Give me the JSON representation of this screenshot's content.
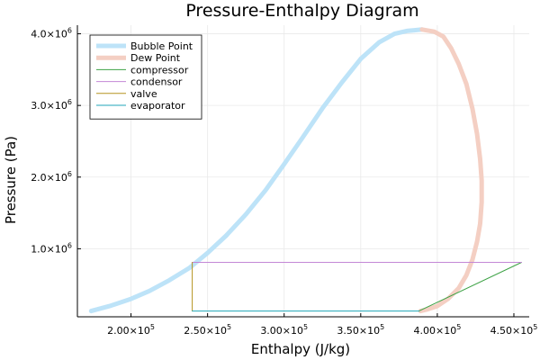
{
  "chart_data": {
    "type": "line",
    "title": "Pressure-Enthalpy Diagram",
    "xlabel": "Enthalpy (J/kg)",
    "ylabel": "Pressure (Pa)",
    "xlim": [
      165000,
      460000
    ],
    "ylim": [
      50000,
      4120000
    ],
    "grid": true,
    "legend_position": "top-left",
    "x_ticks": [
      {
        "value": 200000,
        "mantissa": "2.00×10",
        "exp": "5"
      },
      {
        "value": 250000,
        "mantissa": "2.50×10",
        "exp": "5"
      },
      {
        "value": 300000,
        "mantissa": "3.00×10",
        "exp": "5"
      },
      {
        "value": 350000,
        "mantissa": "3.50×10",
        "exp": "5"
      },
      {
        "value": 400000,
        "mantissa": "4.00×10",
        "exp": "5"
      },
      {
        "value": 450000,
        "mantissa": "4.50×10",
        "exp": "5"
      }
    ],
    "y_ticks": [
      {
        "value": 1000000,
        "mantissa": "1.0×10",
        "exp": "6"
      },
      {
        "value": 2000000,
        "mantissa": "2.0×10",
        "exp": "6"
      },
      {
        "value": 3000000,
        "mantissa": "3.0×10",
        "exp": "6"
      },
      {
        "value": 4000000,
        "mantissa": "4.0×10",
        "exp": "6"
      }
    ],
    "series": [
      {
        "name": "Bubble Point",
        "color": "#bde3f8",
        "width": 5,
        "x": [
          174000,
          186000,
          200000,
          212000,
          225000,
          238000,
          250000,
          262000,
          275000,
          288000,
          300000,
          312000,
          325000,
          338000,
          350000,
          362000,
          372000,
          380000,
          385000,
          390000
        ],
        "y": [
          130000,
          200000,
          300000,
          410000,
          560000,
          730000,
          940000,
          1180000,
          1480000,
          1820000,
          2180000,
          2550000,
          2960000,
          3330000,
          3650000,
          3880000,
          4000000,
          4040000,
          4050000,
          4060000
        ]
      },
      {
        "name": "Dew Point",
        "color": "#f4cfc3",
        "width": 5,
        "x": [
          390000,
          398000,
          404000,
          409000,
          414000,
          419000,
          423000,
          426000,
          428000,
          429000,
          429000,
          428000,
          426000,
          423000,
          419000,
          414000,
          407000,
          400000,
          393000,
          389000
        ],
        "y": [
          4060000,
          4030000,
          3960000,
          3800000,
          3580000,
          3300000,
          2950000,
          2600000,
          2250000,
          1950000,
          1650000,
          1350000,
          1100000,
          850000,
          630000,
          450000,
          300000,
          200000,
          150000,
          130000
        ]
      },
      {
        "name": "compressor",
        "color": "#3da245",
        "width": 1,
        "x": [
          388000,
          455000
        ],
        "y": [
          130000,
          810000
        ]
      },
      {
        "name": "condensor",
        "color": "#c387d6",
        "width": 1,
        "x": [
          455000,
          240000
        ],
        "y": [
          810000,
          810000
        ]
      },
      {
        "name": "valve",
        "color": "#b59420",
        "width": 1,
        "x": [
          240000,
          240000
        ],
        "y": [
          810000,
          130000
        ]
      },
      {
        "name": "evaporator",
        "color": "#21a6b8",
        "width": 1,
        "x": [
          240000,
          388000
        ],
        "y": [
          130000,
          130000
        ]
      }
    ]
  }
}
